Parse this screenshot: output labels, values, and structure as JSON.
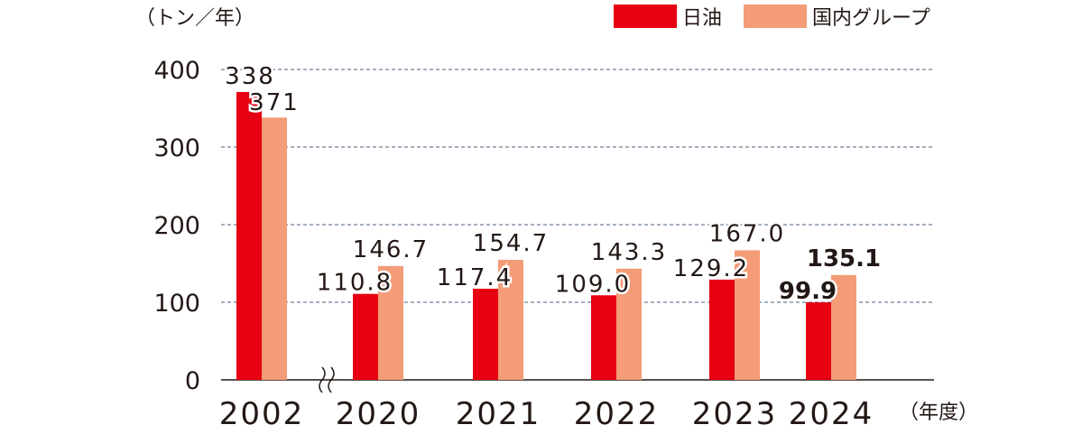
{
  "chart_data": {
    "type": "bar",
    "unit_label": "（トン／年）",
    "xlabel_suffix": "（年度）",
    "categories": [
      "2002",
      "2020",
      "2021",
      "2022",
      "2023",
      "2024"
    ],
    "series": [
      {
        "name": "日油",
        "color": "#e60012",
        "values": [
          371,
          110.8,
          117.4,
          109.0,
          129.2,
          99.9
        ]
      },
      {
        "name": "国内グループ",
        "color": "#f39c77",
        "values": [
          338,
          146.7,
          154.7,
          143.3,
          167.0,
          135.1
        ]
      }
    ],
    "data_labels": [
      {
        "series1": "371",
        "series2": "338"
      },
      {
        "series1": "110.8",
        "series2": "146.7"
      },
      {
        "series1": "117.4",
        "series2": "154.7"
      },
      {
        "series1": "109.0",
        "series2": "143.3"
      },
      {
        "series1": "129.2",
        "series2": "167.0"
      },
      {
        "series1": "99.9",
        "series2": "135.1"
      }
    ],
    "y_ticks": [
      "0",
      "100",
      "200",
      "300",
      "400"
    ],
    "ylim": [
      0,
      400
    ],
    "grid": true,
    "axis_break_after_category": "2002",
    "highlight_category": "2024"
  }
}
